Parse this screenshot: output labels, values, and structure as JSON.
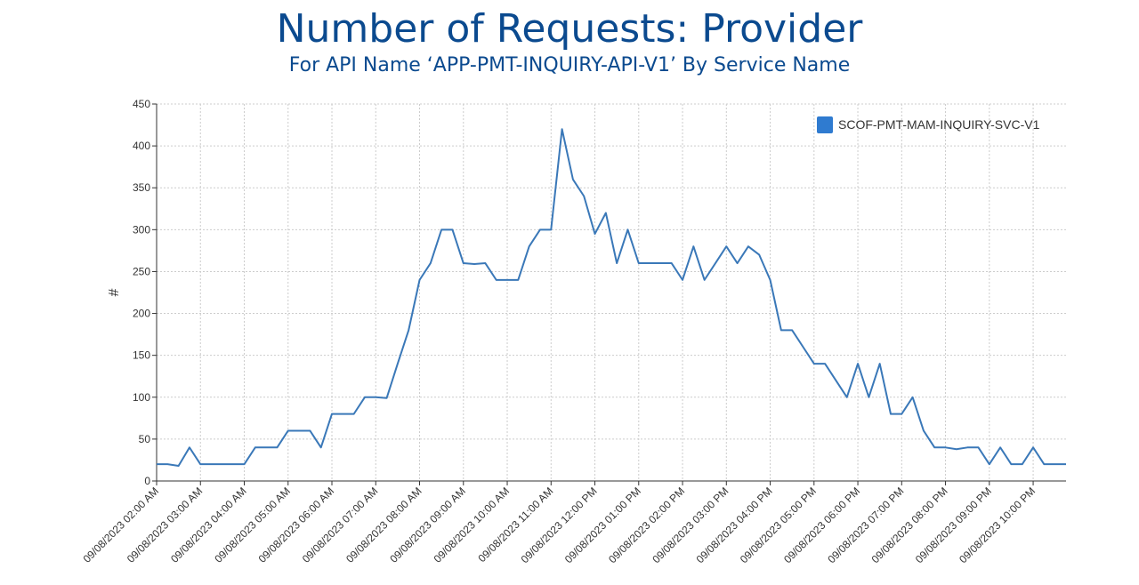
{
  "header": {
    "title": "Number of Requests: Provider",
    "subtitle": "For API Name ‘APP-PMT-INQUIRY-API-V1’ By Service Name"
  },
  "colors": {
    "title": "#0b4a8f",
    "series": "#3a78b8",
    "legend_swatch": "#2f7bd0",
    "grid": "#cccccc",
    "axis": "#333333"
  },
  "chart_data": {
    "type": "line",
    "title": "Number of Requests: Provider",
    "subtitle": "For API Name ‘APP-PMT-INQUIRY-API-V1’ By Service Name",
    "xlabel": "",
    "ylabel": "#",
    "ylim": [
      0,
      450
    ],
    "yticks": [
      0,
      50,
      100,
      150,
      200,
      250,
      300,
      350,
      400,
      450
    ],
    "grid": true,
    "legend_position": "top-right",
    "x_interval_minutes": 15,
    "xlim_index": [
      0,
      83
    ],
    "x_tick_labels": [
      {
        "index": 0,
        "label": "09/08/2023 02:00 AM"
      },
      {
        "index": 4,
        "label": "09/08/2023 03:00 AM"
      },
      {
        "index": 8,
        "label": "09/08/2023 04:00 AM"
      },
      {
        "index": 12,
        "label": "09/08/2023 05:00 AM"
      },
      {
        "index": 16,
        "label": "09/08/2023 06:00 AM"
      },
      {
        "index": 20,
        "label": "09/08/2023 07:00 AM"
      },
      {
        "index": 24,
        "label": "09/08/2023 08:00 AM"
      },
      {
        "index": 28,
        "label": "09/08/2023 09:00 AM"
      },
      {
        "index": 32,
        "label": "09/08/2023 10:00 AM"
      },
      {
        "index": 36,
        "label": "09/08/2023 11:00 AM"
      },
      {
        "index": 40,
        "label": "09/08/2023 12:00 PM"
      },
      {
        "index": 44,
        "label": "09/08/2023 01:00 PM"
      },
      {
        "index": 48,
        "label": "09/08/2023 02:00 PM"
      },
      {
        "index": 52,
        "label": "09/08/2023 03:00 PM"
      },
      {
        "index": 56,
        "label": "09/08/2023 04:00 PM"
      },
      {
        "index": 60,
        "label": "09/08/2023 05:00 PM"
      },
      {
        "index": 64,
        "label": "09/08/2023 06:00 PM"
      },
      {
        "index": 68,
        "label": "09/08/2023 07:00 PM"
      },
      {
        "index": 72,
        "label": "09/08/2023 08:00 PM"
      },
      {
        "index": 76,
        "label": "09/08/2023 09:00 PM"
      },
      {
        "index": 80,
        "label": "09/08/2023 10:00 PM"
      }
    ],
    "series": [
      {
        "name": "SCOF-PMT-MAM-INQUIRY-SVC-V1",
        "color": "#3a78b8",
        "values": [
          20,
          20,
          18,
          40,
          20,
          20,
          20,
          20,
          20,
          40,
          40,
          40,
          60,
          60,
          60,
          40,
          80,
          80,
          80,
          100,
          100,
          99,
          140,
          180,
          240,
          260,
          300,
          300,
          260,
          259,
          260,
          240,
          240,
          240,
          280,
          300,
          300,
          420,
          360,
          340,
          295,
          320,
          260,
          300,
          260,
          260,
          260,
          260,
          240,
          280,
          240,
          260,
          280,
          260,
          280,
          270,
          240,
          180,
          180,
          160,
          140,
          140,
          120,
          100,
          140,
          100,
          140,
          80,
          80,
          100,
          60,
          40,
          40,
          38,
          40,
          40,
          20,
          40,
          20,
          20,
          40,
          20,
          20,
          20
        ]
      }
    ]
  }
}
